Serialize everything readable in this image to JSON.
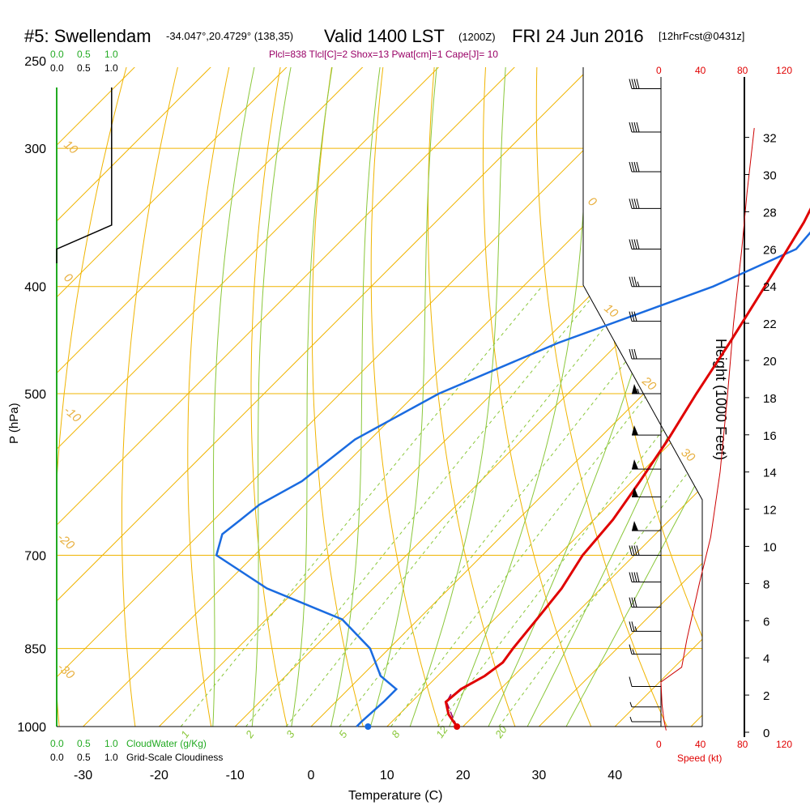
{
  "header": {
    "station": "#5: Swellendam",
    "coords": "-34.047°,20.4729° (138,35)",
    "valid": "Valid 1400 LST",
    "zulu": "(1200Z)",
    "date": "FRI 24 Jun 2016",
    "forecast": "[12hrFcst@0431z]",
    "indices": "Plcl=838 Tlcl[C]=2 Shox=13 Pwat[cm]=1 Cape[J]= 10"
  },
  "labels": {
    "pressure_axis": "P (hPa)",
    "temperature_axis": "Temperature (C)",
    "height_axis": "Height (1000 Feet)",
    "speed_axis": "Speed (kt)",
    "cloud_water": "CloudWater (g/Kg)",
    "grid_cloudiness": "Grid-Scale Cloudiness",
    "cloud_scale_green": [
      "0.0",
      "0.5",
      "1.0"
    ],
    "cloud_scale_black": [
      "0.0",
      "0.5",
      "1.0"
    ],
    "speed_ticks": [
      "0",
      "40",
      "80",
      "120"
    ]
  },
  "colors": {
    "isobar": "#f0b400",
    "isotherm": "#f0b400",
    "dry_adiabat": "#8ac73a",
    "moist_adiabat": "#8ac73a",
    "temperature": "#e00000",
    "dewpoint": "#1a6be0",
    "parcel": "#990066",
    "cloud": "#22aa22",
    "wind_speed": "#cc0000"
  },
  "chart_data": {
    "type": "line",
    "title": "#5: Swellendam",
    "xlabel": "Temperature (C)",
    "ylabel": "P (hPa)",
    "x_ticks": [
      -30,
      -20,
      -10,
      0,
      10,
      20,
      30,
      40
    ],
    "pressure_ticks": [
      250,
      300,
      400,
      500,
      700,
      850,
      1000
    ],
    "height_ticks": [
      0,
      2,
      4,
      6,
      8,
      10,
      12,
      14,
      16,
      18,
      20,
      22,
      24,
      26,
      28,
      30,
      32
    ],
    "isotherm_labels": [
      "10",
      "0",
      "-10",
      "-20",
      "-30",
      "0",
      "10",
      "20",
      "30"
    ],
    "mixing_ratio_labels": [
      "1",
      "2",
      "3",
      "5",
      "8",
      "12",
      "20"
    ],
    "temperature": {
      "pressure": [
        1000,
        975,
        950,
        925,
        900,
        875,
        850,
        800,
        750,
        700,
        650,
        600,
        550,
        500,
        450,
        400,
        350,
        300,
        265
      ],
      "values": [
        19.2,
        16.5,
        14.5,
        14.8,
        16.2,
        16.8,
        16.3,
        15.6,
        14.8,
        13.2,
        12.5,
        11.0,
        9.2,
        6.9,
        4.6,
        1.8,
        -1.5,
        -6.3,
        -10.5
      ]
    },
    "dewpoint": {
      "pressure": [
        1000,
        990,
        950,
        925,
        900,
        850,
        800,
        750,
        700,
        670,
        650,
        630,
        600,
        550,
        500,
        450,
        400,
        370,
        350,
        300,
        265
      ],
      "values": [
        6.0,
        6.0,
        6.3,
        6.3,
        2.5,
        -2.5,
        -10.0,
        -24.0,
        -35.0,
        -37.0,
        -36.5,
        -36.0,
        -33.5,
        -32.0,
        -27.0,
        -18.0,
        -5.0,
        1.0,
        0.5,
        -3.5,
        -7.5
      ]
    },
    "parcel": {
      "pressure": [
        1000,
        975,
        950,
        930
      ],
      "values": [
        19.2,
        16.9,
        14.6,
        14.0
      ]
    },
    "cloud_fraction": [
      {
        "pressure": 250,
        "value": 0.88
      },
      {
        "pressure": 352,
        "value": 0.88
      },
      {
        "pressure": 370,
        "value": 0.0
      }
    ],
    "wind_speed_kt": [
      {
        "height": 0.1,
        "value": 5
      },
      {
        "height": 0.6,
        "value": 3
      },
      {
        "height": 1.5,
        "value": 1
      },
      {
        "height": 2.7,
        "value": 0
      },
      {
        "height": 3.5,
        "value": 20
      },
      {
        "height": 5.0,
        "value": 25
      },
      {
        "height": 8.0,
        "value": 37
      },
      {
        "height": 10.5,
        "value": 48
      },
      {
        "height": 14.0,
        "value": 57
      },
      {
        "height": 18.0,
        "value": 64
      },
      {
        "height": 22.0,
        "value": 70
      },
      {
        "height": 26.0,
        "value": 78
      },
      {
        "height": 29.0,
        "value": 83
      },
      {
        "height": 32.5,
        "value": 90
      }
    ],
    "barbs": [
      {
        "pressure": 265,
        "speed": 40
      },
      {
        "pressure": 290,
        "speed": 40
      },
      {
        "pressure": 315,
        "speed": 40
      },
      {
        "pressure": 340,
        "speed": 40
      },
      {
        "pressure": 370,
        "speed": 40
      },
      {
        "pressure": 400,
        "speed": 35
      },
      {
        "pressure": 430,
        "speed": 30
      },
      {
        "pressure": 465,
        "speed": 30
      },
      {
        "pressure": 500,
        "speed": 55
      },
      {
        "pressure": 545,
        "speed": 50
      },
      {
        "pressure": 585,
        "speed": 50
      },
      {
        "pressure": 620,
        "speed": 50
      },
      {
        "pressure": 665,
        "speed": 50
      },
      {
        "pressure": 700,
        "speed": 40
      },
      {
        "pressure": 740,
        "speed": 40
      },
      {
        "pressure": 780,
        "speed": 30
      },
      {
        "pressure": 820,
        "speed": 25
      },
      {
        "pressure": 860,
        "speed": 15
      },
      {
        "pressure": 920,
        "speed": 10
      },
      {
        "pressure": 960,
        "speed": 5
      },
      {
        "pressure": 990,
        "speed": 5
      }
    ]
  }
}
